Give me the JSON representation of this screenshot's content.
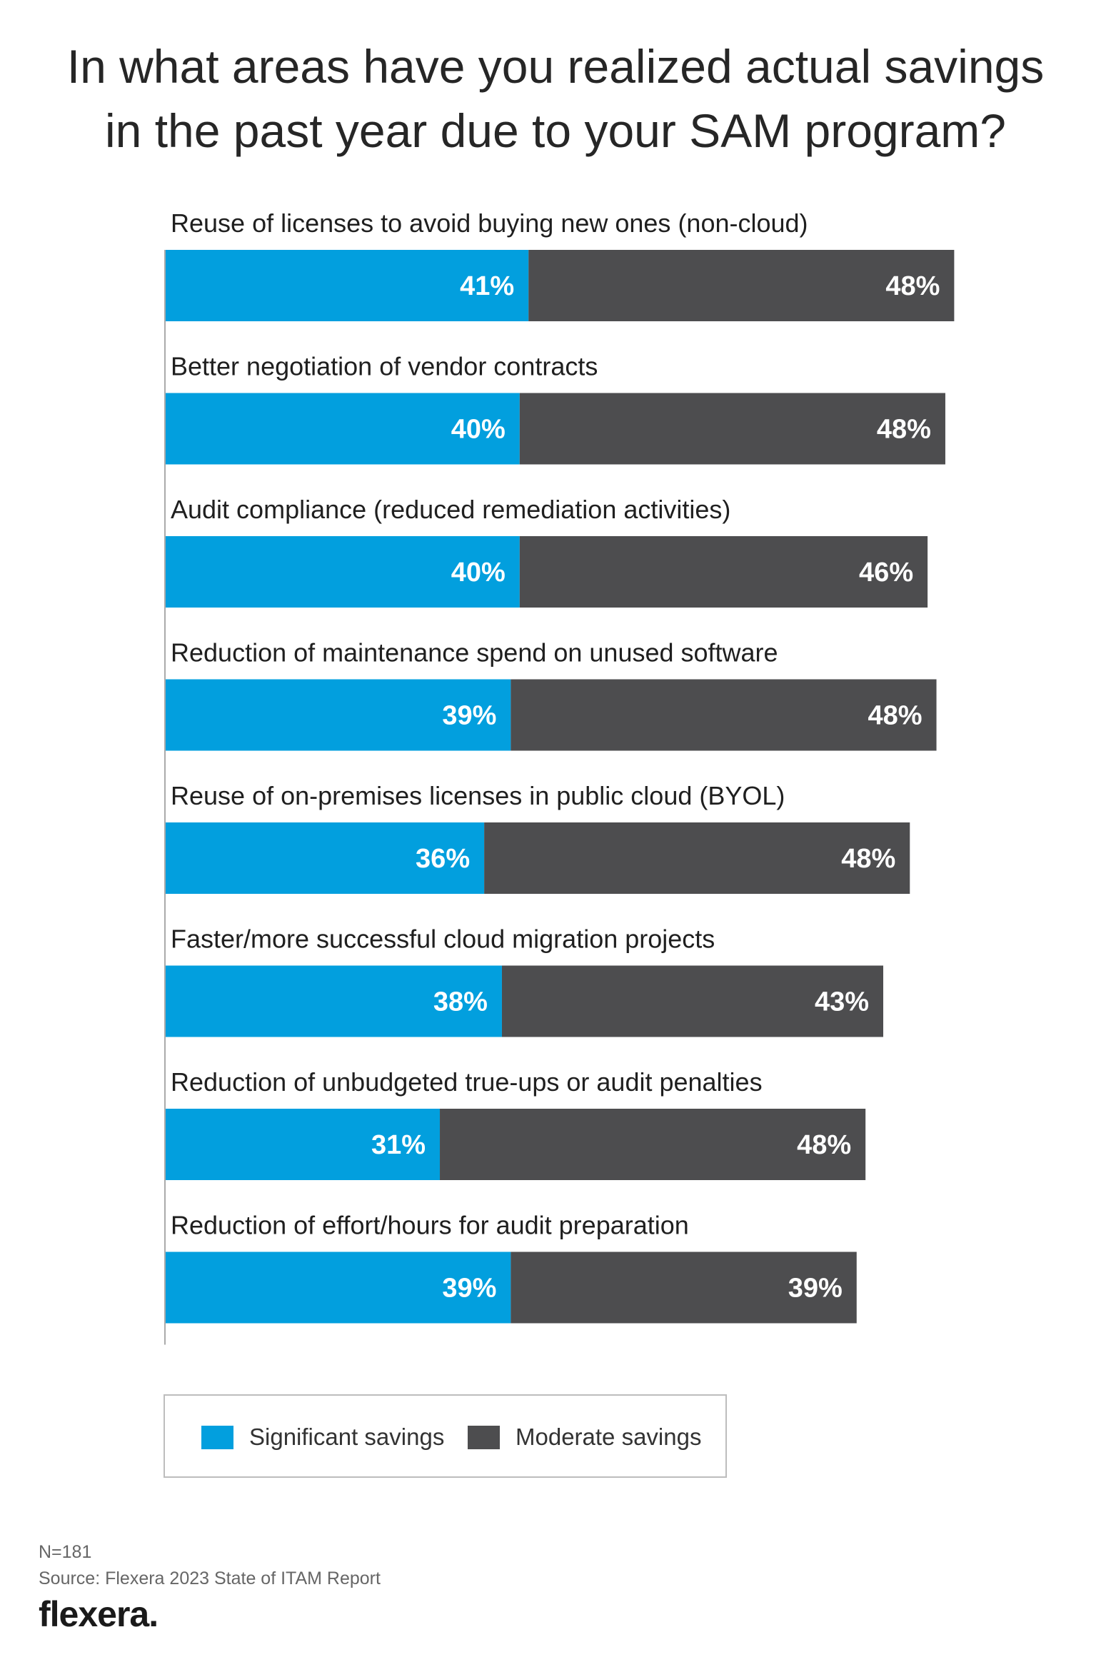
{
  "title_lines": [
    "In what areas have you realized actual savings",
    "in the past year due to your SAM program?"
  ],
  "colors": {
    "significant": "#029fde",
    "moderate": "#4d4d4f",
    "axis": "#aaaaaa"
  },
  "chart_data": {
    "type": "bar",
    "orientation": "horizontal",
    "stacked": true,
    "title": "In what areas have you realized actual savings in the past year due to your SAM program?",
    "categories": [
      "Reuse of licenses to avoid buying new ones (non-cloud)",
      "Better negotiation of vendor contracts",
      "Audit compliance (reduced remediation activities)",
      "Reduction of maintenance spend on unused software",
      "Reuse of on-premises licenses in public cloud (BYOL)",
      "Faster/more successful cloud migration projects",
      "Reduction of unbudgeted true-ups or audit penalties",
      "Reduction of effort/hours for audit preparation"
    ],
    "series": [
      {
        "name": "Significant savings",
        "values": [
          41,
          40,
          40,
          39,
          36,
          38,
          31,
          39
        ]
      },
      {
        "name": "Moderate savings",
        "values": [
          48,
          48,
          46,
          48,
          48,
          43,
          48,
          39
        ]
      }
    ],
    "value_suffix": "%",
    "xlim": [
      0,
      100
    ],
    "grid": false,
    "legend_position": "bottom"
  },
  "legend": {
    "significant_label": "Significant savings",
    "moderate_label": "Moderate savings"
  },
  "footer": {
    "n": "N=181",
    "source": "Source: Flexera 2023 State of ITAM Report"
  },
  "logo": {
    "text": "flexera",
    "dot": "."
  }
}
